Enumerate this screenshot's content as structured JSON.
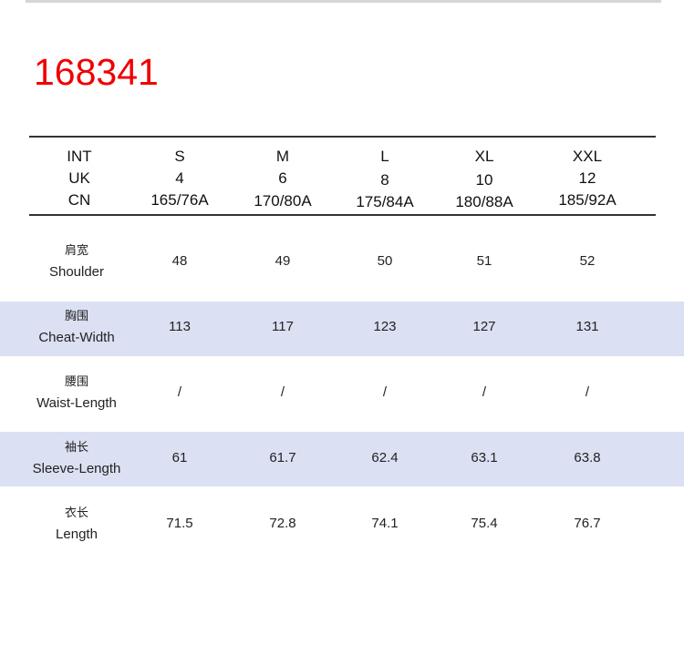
{
  "product_code": "168341",
  "colors": {
    "code": "#f00000",
    "band": "#dbe0f2"
  },
  "header": [
    {
      "label": "INT",
      "values": [
        "S",
        "M",
        "L",
        "XL",
        "XXL"
      ]
    },
    {
      "label": "UK",
      "values": [
        "4",
        "6",
        "8",
        "10",
        "12"
      ]
    },
    {
      "label": "CN",
      "values": [
        "165/76A",
        "170/80A",
        "175/84A",
        "180/88A",
        "185/92A"
      ]
    }
  ],
  "rows": [
    {
      "cn": "肩宽",
      "en": "Shoulder",
      "values": [
        "48",
        "49",
        "50",
        "51",
        "52"
      ]
    },
    {
      "cn": "胸围",
      "en": "Cheat-Width",
      "values": [
        "113",
        "117",
        "123",
        "127",
        "131"
      ]
    },
    {
      "cn": "腰围",
      "en": "Waist-Length",
      "values": [
        "/",
        "/",
        "/",
        "/",
        "/"
      ]
    },
    {
      "cn": "袖长",
      "en": "Sleeve-Length",
      "values": [
        "61",
        "61.7",
        "62.4",
        "63.1",
        "63.8"
      ]
    },
    {
      "cn": "衣长",
      "en": "Length",
      "values": [
        "71.5",
        "72.8",
        "74.1",
        "75.4",
        "76.7"
      ]
    }
  ]
}
